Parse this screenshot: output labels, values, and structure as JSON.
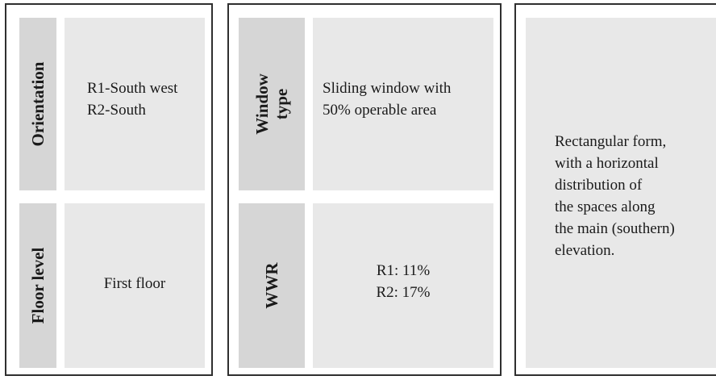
{
  "panels": [
    {
      "rows": [
        {
          "label": [
            "Orientation"
          ],
          "value": [
            "R1-South west",
            "R2-South"
          ]
        },
        {
          "label": [
            "Floor level"
          ],
          "value": [
            "First floor"
          ]
        }
      ]
    },
    {
      "rows": [
        {
          "label": [
            "Window",
            "type"
          ],
          "value": [
            "Sliding window with",
            "50% operable area"
          ]
        },
        {
          "label": [
            "WWR"
          ],
          "value": [
            "R1: 11%",
            "R2: 17%"
          ]
        }
      ]
    },
    {
      "description": [
        "Rectangular form,",
        "with a horizontal",
        "distribution of",
        "the spaces along",
        "the main (southern)",
        "elevation."
      ]
    }
  ]
}
